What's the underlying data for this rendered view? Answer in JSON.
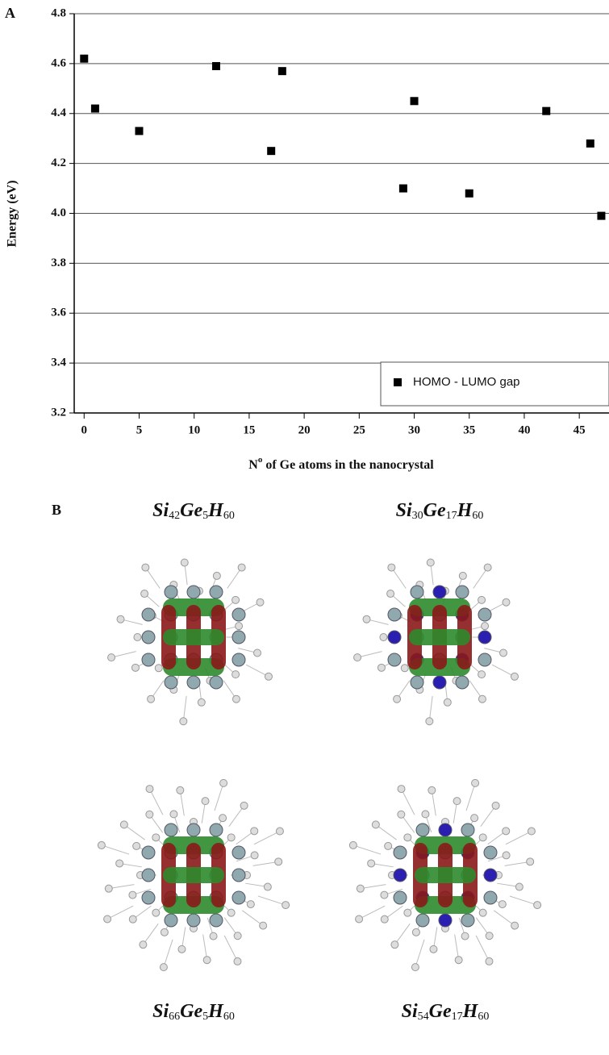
{
  "chart_data": {
    "type": "scatter",
    "panel_label": "A",
    "ylabel": "Energy (eV)",
    "xlabel": [
      "N",
      "o",
      " of Ge atoms in the nanocrystal"
    ],
    "xlim": [
      -0.9,
      47.7
    ],
    "ylim": [
      3.2,
      4.8
    ],
    "xticks": [
      0,
      5,
      10,
      15,
      20,
      25,
      30,
      35,
      40,
      45
    ],
    "yticks": [
      3.2,
      3.4,
      3.6,
      3.8,
      {
        "value": 4,
        "label": "4.0"
      },
      4.2,
      4.4,
      4.6,
      4.8
    ],
    "grid": true,
    "legend": "bottom-right",
    "series": [
      {
        "name": "HOMO - LUMO gap",
        "color": "#000000",
        "x": [
          0,
          1,
          5,
          12,
          17,
          18,
          29,
          30,
          35,
          42,
          46,
          47
        ],
        "values": [
          4.62,
          4.42,
          4.33,
          4.59,
          4.25,
          4.57,
          4.1,
          4.45,
          4.08,
          4.41,
          4.28,
          3.99
        ]
      }
    ]
  },
  "panel_b": {
    "label": "B",
    "structures": [
      {
        "formula": [
          [
            "Si",
            "42"
          ],
          [
            "Ge",
            "5"
          ],
          [
            "H",
            "60"
          ]
        ]
      },
      {
        "formula": [
          [
            "Si",
            "30"
          ],
          [
            "Ge",
            "17"
          ],
          [
            "H",
            "60"
          ]
        ]
      },
      {
        "formula": [
          [
            "Si",
            "66"
          ],
          [
            "Ge",
            "5"
          ],
          [
            "H",
            "60"
          ]
        ]
      },
      {
        "formula": [
          [
            "Si",
            "54"
          ],
          [
            "Ge",
            "17"
          ],
          [
            "H",
            "60"
          ]
        ]
      }
    ]
  }
}
